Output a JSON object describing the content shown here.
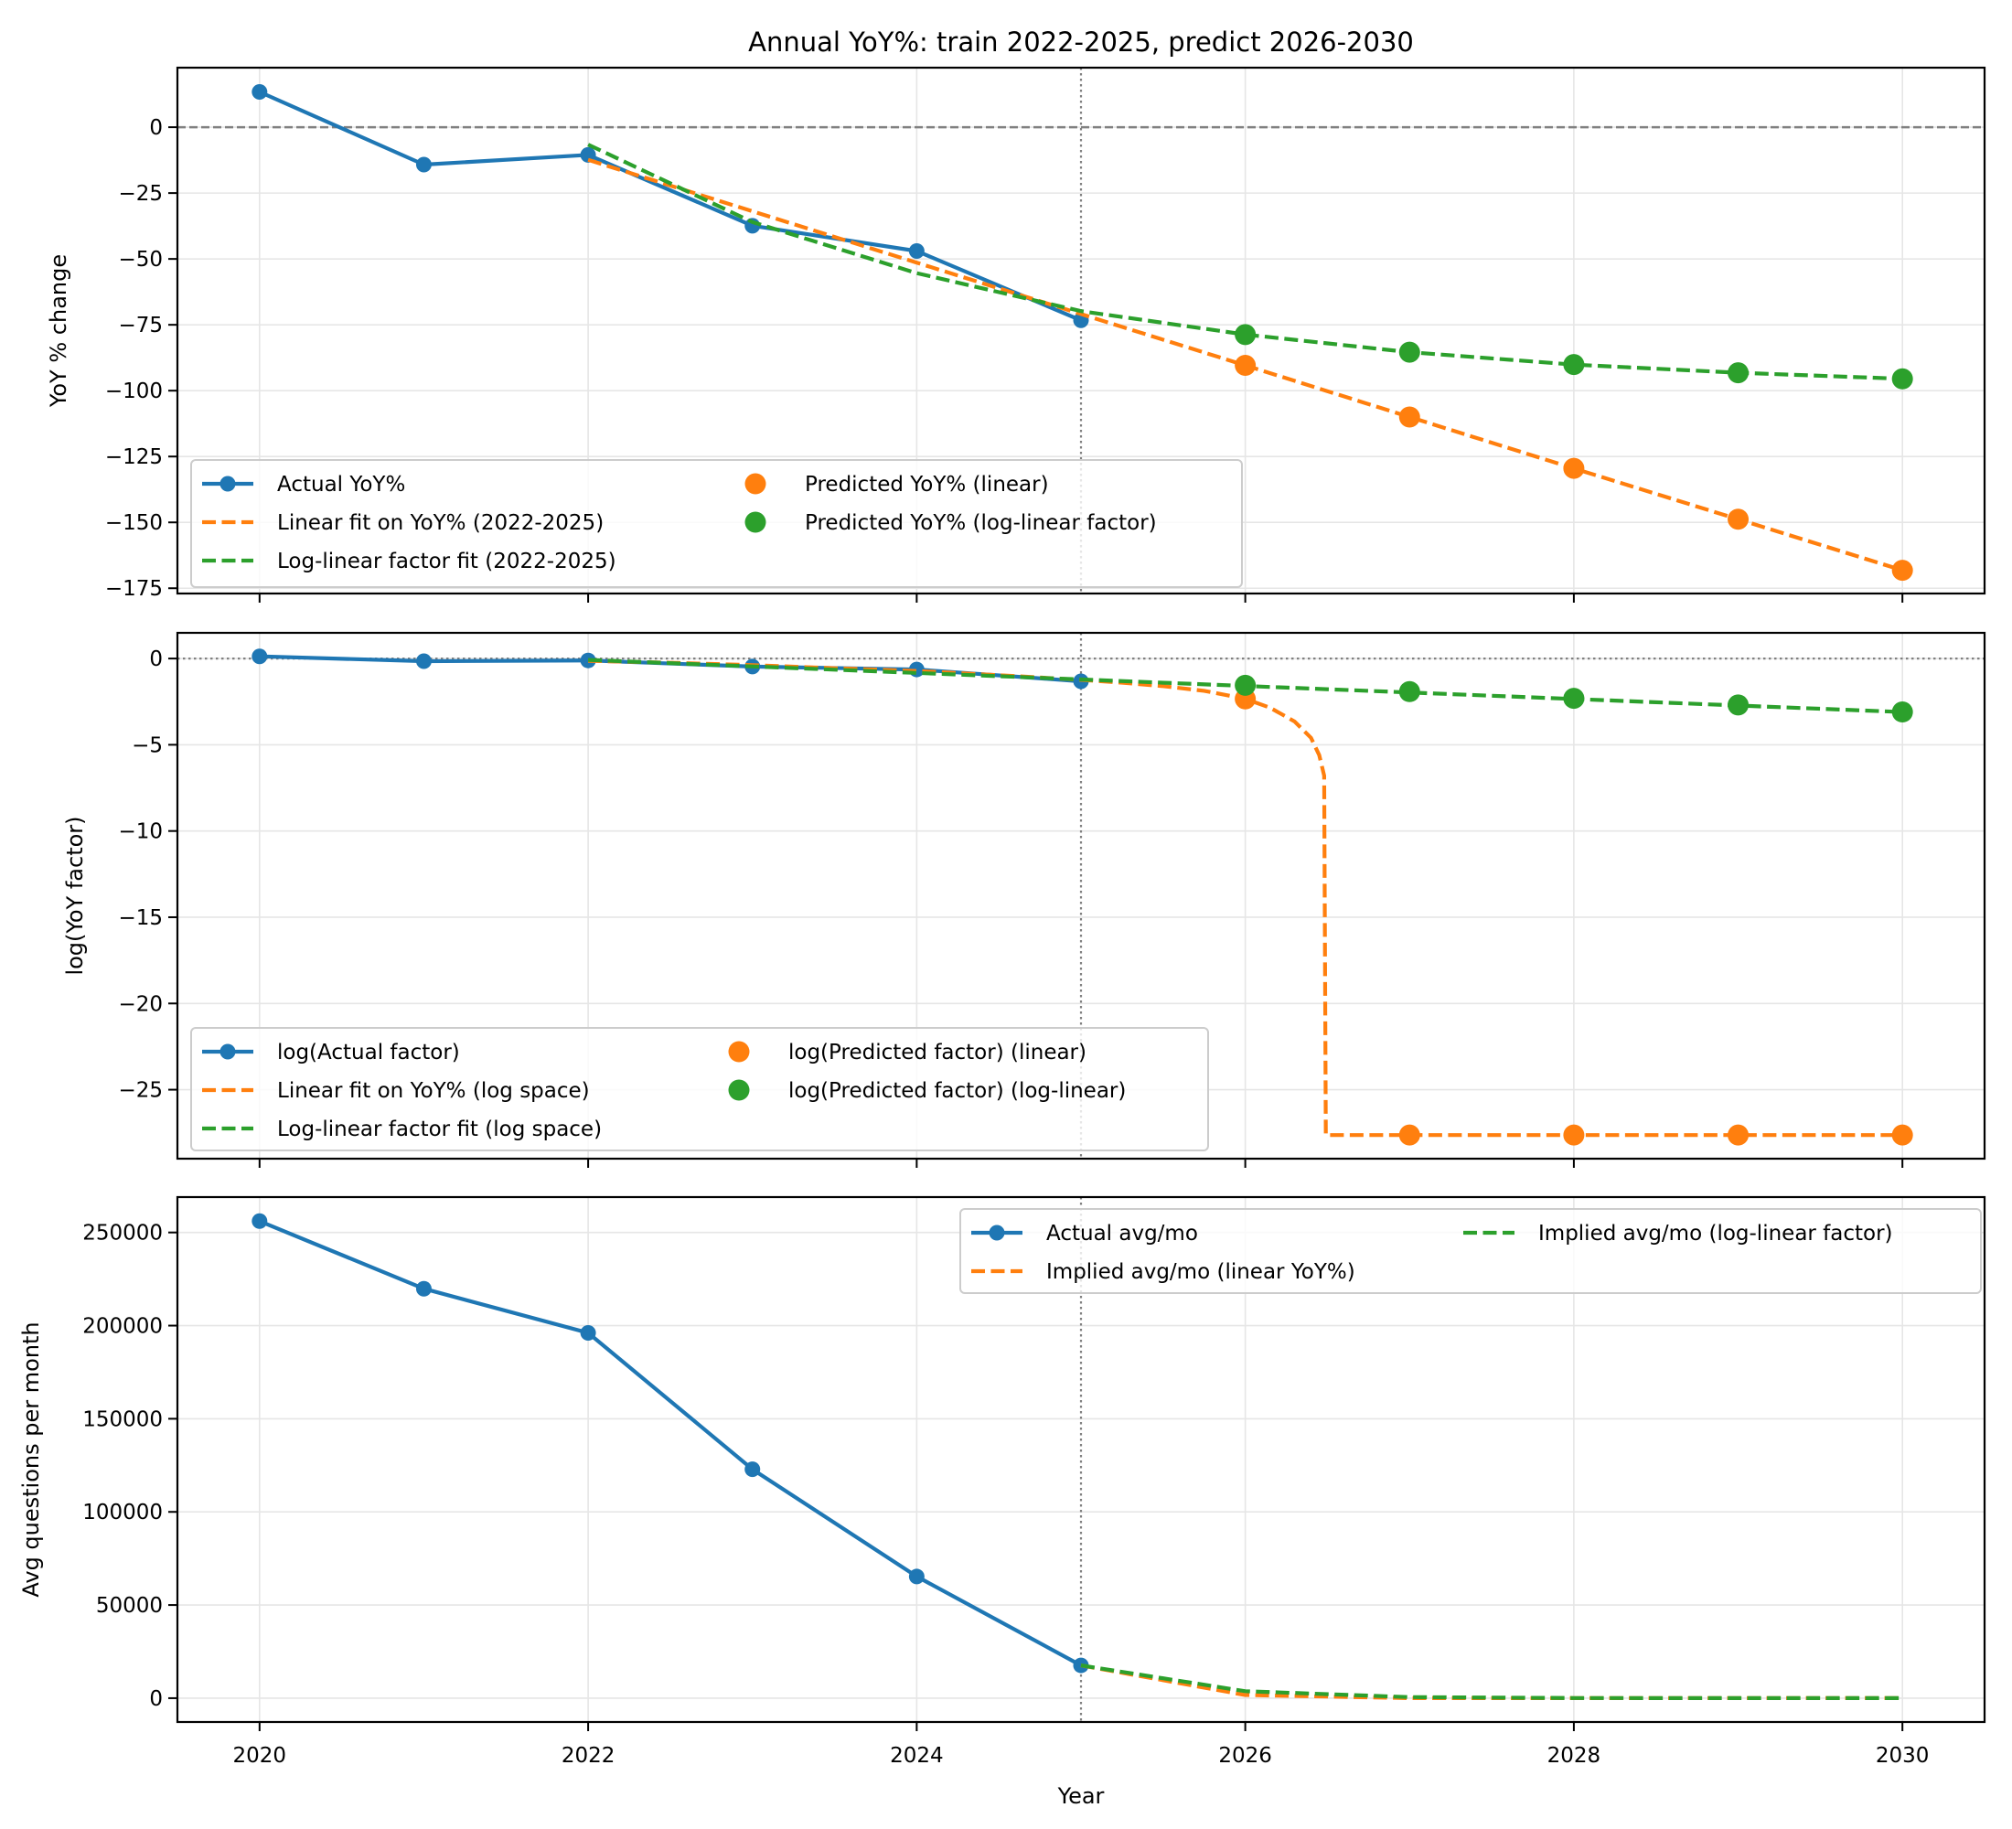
{
  "figure": {
    "title": "Annual YoY%: train 2022-2025, predict 2026-2030",
    "xlabel": "Year"
  },
  "colors": {
    "actual": "#1f77b4",
    "linear": "#ff7f0e",
    "loglinear": "#2ca02c",
    "reference": "#808080",
    "grid": "#e6e6e6"
  },
  "chart_data": [
    {
      "type": "line",
      "panel": "yoy",
      "title": "Annual YoY%: train 2022-2025, predict 2026-2030",
      "xlabel": "",
      "ylabel": "YoY % change",
      "xlim": [
        2019.5,
        2030.5
      ],
      "ylim": [
        -177,
        22.6
      ],
      "xticks": [
        2020,
        2022,
        2024,
        2026,
        2028,
        2030
      ],
      "yticks": [
        0,
        -25,
        -50,
        -75,
        -100,
        -125,
        -150,
        -175
      ],
      "ytick_labels": [
        "0",
        "−25",
        "−50",
        "−75",
        "−100",
        "−125",
        "−150",
        "−175"
      ],
      "grid": true,
      "hline": {
        "y": 0,
        "style": "dashed"
      },
      "vline": {
        "x": 2025,
        "style": "dotted"
      },
      "legend": {
        "placement": "lower-left",
        "columns": 2
      },
      "series": [
        {
          "name": "Actual YoY%",
          "kind": "line-marker",
          "color_key": "actual",
          "x": [
            2020,
            2021,
            2022,
            2023,
            2024,
            2025
          ],
          "y": [
            13.4,
            -14.2,
            -10.5,
            -37.4,
            -47.0,
            -73.3
          ]
        },
        {
          "name": "Linear fit on YoY% (2022-2025)",
          "kind": "dashed",
          "color_key": "linear",
          "x": [
            2022,
            2023,
            2024,
            2025,
            2026,
            2027,
            2028,
            2029,
            2030
          ],
          "y": [
            -12.4,
            -31.9,
            -51.4,
            -70.9,
            -90.4,
            -110.0,
            -129.5,
            -148.8,
            -168.2
          ]
        },
        {
          "name": "Log-linear factor fit (2022-2025)",
          "kind": "dashed",
          "color_key": "loglinear",
          "x": [
            2022,
            2023,
            2024,
            2025,
            2026,
            2027,
            2028,
            2029,
            2030
          ],
          "y": [
            -6.6,
            -36.0,
            -55.4,
            -69.8,
            -78.7,
            -85.4,
            -90.1,
            -93.2,
            -95.5
          ]
        },
        {
          "name": "Predicted YoY% (linear)",
          "kind": "scatter",
          "color_key": "linear",
          "x": [
            2026,
            2027,
            2028,
            2029,
            2030
          ],
          "y": [
            -90.4,
            -110.0,
            -129.5,
            -148.8,
            -168.2
          ]
        },
        {
          "name": "Predicted YoY% (log-linear factor)",
          "kind": "scatter",
          "color_key": "loglinear",
          "x": [
            2026,
            2027,
            2028,
            2029,
            2030
          ],
          "y": [
            -78.7,
            -85.4,
            -90.1,
            -93.2,
            -95.5
          ]
        }
      ]
    },
    {
      "type": "line",
      "panel": "logfactor",
      "xlabel": "",
      "ylabel": "log(YoY factor)",
      "xlim": [
        2019.5,
        2030.5
      ],
      "ylim": [
        -29.0,
        1.49
      ],
      "xticks": [
        2020,
        2022,
        2024,
        2026,
        2028,
        2030
      ],
      "yticks": [
        0,
        -5,
        -10,
        -15,
        -20,
        -25
      ],
      "ytick_labels": [
        "0",
        "−5",
        "−10",
        "−15",
        "−20",
        "−25"
      ],
      "grid": true,
      "hline": {
        "y": 0,
        "style": "dotted"
      },
      "vline": {
        "x": 2025,
        "style": "dotted"
      },
      "legend": {
        "placement": "lower-left",
        "columns": 2
      },
      "series": [
        {
          "name": "log(Actual factor)",
          "kind": "line-marker",
          "color_key": "actual",
          "x": [
            2020,
            2021,
            2022,
            2023,
            2024,
            2025
          ],
          "y": [
            0.126,
            -0.153,
            -0.111,
            -0.468,
            -0.635,
            -1.32
          ]
        },
        {
          "name": "Linear fit on YoY% (log space)",
          "kind": "dashed",
          "color_key": "linear",
          "x": [
            2022,
            2022.5,
            2023,
            2023.5,
            2024,
            2024.5,
            2025,
            2025.25,
            2025.5,
            2025.75,
            2026,
            2026.15,
            2026.3,
            2026.4,
            2026.45,
            2026.48,
            2026.49,
            2026.5,
            2027,
            2028,
            2029,
            2030
          ],
          "y": [
            -0.132,
            -0.244,
            -0.383,
            -0.564,
            -0.721,
            -0.964,
            -1.237,
            -1.399,
            -1.602,
            -1.87,
            -2.34,
            -2.85,
            -3.65,
            -4.6,
            -5.6,
            -6.8,
            -27.63,
            -27.63,
            -27.63,
            -27.63,
            -27.63,
            -27.63
          ]
        },
        {
          "name": "Log-linear factor fit (log space)",
          "kind": "dashed",
          "color_key": "loglinear",
          "x": [
            2022,
            2030
          ],
          "y": [
            -0.08,
            -3.1
          ]
        },
        {
          "name": "log(Predicted factor) (linear)",
          "kind": "scatter",
          "color_key": "linear",
          "x": [
            2026,
            2027,
            2028,
            2029,
            2030
          ],
          "y": [
            -2.34,
            -27.63,
            -27.63,
            -27.63,
            -27.63
          ]
        },
        {
          "name": "log(Predicted factor) (log-linear)",
          "kind": "scatter",
          "color_key": "loglinear",
          "x": [
            2026,
            2027,
            2028,
            2029,
            2030
          ],
          "y": [
            -1.55,
            -1.92,
            -2.31,
            -2.69,
            -3.1
          ]
        }
      ]
    },
    {
      "type": "line",
      "panel": "avg",
      "xlabel": "Year",
      "ylabel": "Avg questions per month",
      "xlim": [
        2019.5,
        2030.5
      ],
      "ylim": [
        -12800,
        269000
      ],
      "xticks": [
        2020,
        2022,
        2024,
        2026,
        2028,
        2030
      ],
      "xtick_labels": [
        "2020",
        "2022",
        "2024",
        "2026",
        "2028",
        "2030"
      ],
      "yticks": [
        0,
        50000,
        100000,
        150000,
        200000,
        250000
      ],
      "ytick_labels": [
        "0",
        "50000",
        "100000",
        "150000",
        "200000",
        "250000"
      ],
      "grid": true,
      "vline": {
        "x": 2025,
        "style": "dotted"
      },
      "legend": {
        "placement": "top-right",
        "columns": 2
      },
      "series": [
        {
          "name": "Actual avg/mo",
          "kind": "line-marker",
          "color_key": "actual",
          "x": [
            2020,
            2021,
            2022,
            2023,
            2024,
            2025
          ],
          "y": [
            256100,
            219800,
            196100,
            122900,
            65300,
            17600
          ]
        },
        {
          "name": "Implied avg/mo (linear YoY%)",
          "kind": "dashed",
          "color_key": "linear",
          "x": [
            2025,
            2026,
            2027,
            2028,
            2029,
            2030
          ],
          "y": [
            17600,
            1690,
            0,
            0,
            0,
            0
          ]
        },
        {
          "name": "Implied avg/mo (log-linear factor)",
          "kind": "dashed",
          "color_key": "loglinear",
          "x": [
            2025,
            2026,
            2027,
            2028,
            2029,
            2030
          ],
          "y": [
            17600,
            3750,
            548,
            54,
            4,
            0
          ]
        }
      ]
    }
  ]
}
